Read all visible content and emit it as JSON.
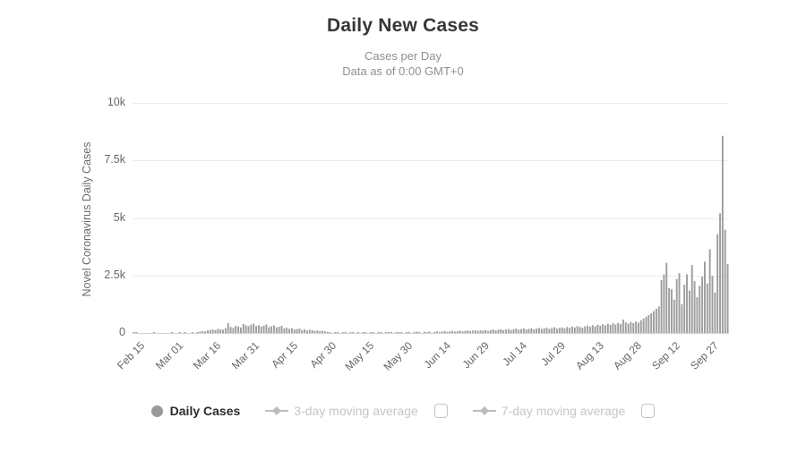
{
  "header": {
    "title": "Daily New Cases",
    "subtitle_line1": "Cases per Day",
    "subtitle_line2": "Data as of 0:00 GMT+0"
  },
  "chart_data": {
    "type": "bar",
    "title": "Daily New Cases",
    "subtitle": [
      "Cases per Day",
      "Data as of 0:00 GMT+0"
    ],
    "ylabel": "Novel Coronavirus Daily Cases",
    "xlabel": "",
    "ylim": [
      0,
      10000
    ],
    "grid": "horizontal",
    "legend_position": "bottom",
    "bar_color": "#9d9d9d",
    "gridline_color": "#ececec",
    "baseline_color": "#d2d2d2",
    "y_ticks": [
      {
        "label": "0",
        "value": 0
      },
      {
        "label": "2.5k",
        "value": 2500
      },
      {
        "label": "5k",
        "value": 5000
      },
      {
        "label": "7.5k",
        "value": 7500
      },
      {
        "label": "10k",
        "value": 10000
      }
    ],
    "x_ticks": [
      {
        "label": "Feb 15",
        "day": 0
      },
      {
        "label": "Mar 01",
        "day": 15
      },
      {
        "label": "Mar 16",
        "day": 30
      },
      {
        "label": "Mar 31",
        "day": 45
      },
      {
        "label": "Apr 15",
        "day": 60
      },
      {
        "label": "Apr 30",
        "day": 75
      },
      {
        "label": "May 15",
        "day": 90
      },
      {
        "label": "May 30",
        "day": 105
      },
      {
        "label": "Jun 14",
        "day": 120
      },
      {
        "label": "Jun 29",
        "day": 135
      },
      {
        "label": "Jul 14",
        "day": 150
      },
      {
        "label": "Jul 29",
        "day": 165
      },
      {
        "label": "Aug 13",
        "day": 180
      },
      {
        "label": "Aug 28",
        "day": 195
      },
      {
        "label": "Sep 12",
        "day": 210
      },
      {
        "label": "Sep 27",
        "day": 225
      }
    ],
    "start_date": "Feb 15",
    "end_date": "Oct 5",
    "series": [
      {
        "name": "Daily Cases",
        "type": "bar",
        "visible": true,
        "values": [
          30,
          20,
          0,
          0,
          0,
          0,
          0,
          0,
          25,
          0,
          0,
          0,
          0,
          0,
          0,
          25,
          0,
          0,
          30,
          0,
          20,
          0,
          0,
          35,
          0,
          45,
          60,
          80,
          70,
          110,
          130,
          150,
          120,
          180,
          160,
          140,
          210,
          430,
          260,
          220,
          310,
          280,
          240,
          390,
          330,
          300,
          360,
          410,
          300,
          340,
          280,
          320,
          370,
          250,
          290,
          330,
          240,
          270,
          310,
          200,
          230,
          180,
          210,
          150,
          170,
          190,
          130,
          160,
          110,
          140,
          120,
          90,
          110,
          80,
          100,
          70,
          50,
          30,
          0,
          40,
          20,
          0,
          30,
          50,
          0,
          20,
          40,
          0,
          30,
          0,
          20,
          40,
          0,
          30,
          20,
          0,
          50,
          30,
          0,
          40,
          20,
          30,
          0,
          40,
          20,
          30,
          0,
          30,
          50,
          0,
          40,
          60,
          30,
          0,
          50,
          40,
          60,
          0,
          50,
          70,
          40,
          60,
          80,
          50,
          70,
          90,
          60,
          80,
          100,
          70,
          90,
          110,
          80,
          100,
          120,
          90,
          110,
          100,
          130,
          90,
          120,
          150,
          110,
          140,
          160,
          120,
          150,
          170,
          130,
          160,
          190,
          140,
          170,
          200,
          150,
          180,
          210,
          160,
          190,
          220,
          170,
          200,
          230,
          180,
          210,
          250,
          190,
          220,
          240,
          200,
          260,
          220,
          280,
          240,
          300,
          260,
          230,
          290,
          320,
          270,
          340,
          290,
          360,
          310,
          380,
          330,
          400,
          350,
          420,
          370,
          440,
          390,
          580,
          460,
          410,
          480,
          430,
          500,
          450,
          550,
          620,
          700,
          780,
          860,
          950,
          1050,
          1150,
          2300,
          2550,
          3050,
          1950,
          1900,
          1450,
          2350,
          2600,
          1250,
          2100,
          2550,
          1850,
          2950,
          2250,
          1550,
          2050,
          2450,
          3100,
          2150,
          3640,
          2480,
          1760,
          4290,
          5200,
          8570,
          4490,
          3000
        ]
      },
      {
        "name": "3-day moving average",
        "type": "line",
        "visible": false
      },
      {
        "name": "7-day moving average",
        "type": "line",
        "visible": false
      }
    ]
  },
  "legend": {
    "items": [
      {
        "label": "Daily Cases",
        "marker": "circle",
        "enabled": true,
        "checkbox": false
      },
      {
        "label": "3-day moving average",
        "marker": "line-diamond",
        "enabled": false,
        "checkbox": true,
        "checked": false
      },
      {
        "label": "7-day moving average",
        "marker": "line-diamond",
        "enabled": false,
        "checkbox": true,
        "checked": false
      }
    ]
  },
  "colors": {
    "title": "#373737",
    "subtitle": "#8f8f8f",
    "axis_label": "#666666",
    "legend_active": "#2b2b2b",
    "legend_disabled": "#c6c6c6",
    "marker_gray": "#9a9a9a",
    "marker_disabled": "#bdbdbd",
    "checkbox_border": "#c3c3c3"
  }
}
